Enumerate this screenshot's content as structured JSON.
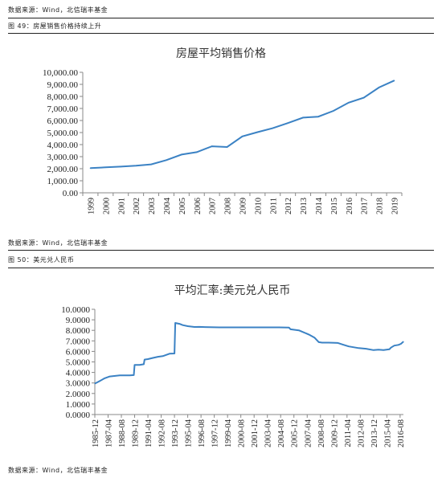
{
  "source_top": "数据来源：Wind，北信瑞丰基金",
  "fig49": "图 49：房屋销售价格持续上升",
  "source_mid": "数据来源：Wind，北信瑞丰基金",
  "fig50": "图 50：美元兑人民币",
  "source_bottom": "数据来源：Wind，北信瑞丰基金",
  "chart_data": [
    {
      "type": "line",
      "title": "房屋平均销售价格",
      "xlabel": "",
      "ylabel": "",
      "ylim": [
        0,
        10000
      ],
      "yticks": [
        "0.00",
        "1,000.00",
        "2,000.00",
        "3,000.00",
        "4,000.00",
        "5,000.00",
        "6,000.00",
        "7,000.00",
        "8,000.00",
        "9,000.00",
        "10,000.00"
      ],
      "categories": [
        "1999",
        "2000",
        "2001",
        "2002",
        "2003",
        "2004",
        "2005",
        "2006",
        "2007",
        "2008",
        "2009",
        "2010",
        "2011",
        "2012",
        "2013",
        "2014",
        "2015",
        "2016",
        "2017",
        "2018",
        "2019"
      ],
      "series": [
        {
          "values": [
            2050,
            2110,
            2170,
            2250,
            2360,
            2710,
            3170,
            3370,
            3860,
            3800,
            4680,
            5030,
            5360,
            5790,
            6240,
            6320,
            6800,
            7480,
            7890,
            8740,
            9310
          ]
        }
      ],
      "line_color": "#3b82c4",
      "grid": false
    },
    {
      "type": "line",
      "title": "平均汇率:美元兑人民币",
      "xlabel": "",
      "ylabel": "",
      "ylim": [
        0,
        10
      ],
      "yticks": [
        "0.0000",
        "1.0000",
        "2.0000",
        "3.0000",
        "4.0000",
        "5.0000",
        "6.0000",
        "7.0000",
        "8.0000",
        "9.0000",
        "10.0000"
      ],
      "xticks": [
        "1985-12",
        "1987-04",
        "1988-08",
        "1989-12",
        "1991-04",
        "1992-08",
        "1993-12",
        "1995-04",
        "1996-08",
        "1997-12",
        "1999-04",
        "2000-08",
        "2001-12",
        "2003-04",
        "2004-08",
        "2005-12",
        "2007-04",
        "2008-08",
        "2009-12",
        "2011-04",
        "2012-08",
        "2013-12",
        "2015-04",
        "2016-08"
      ],
      "xrange": [
        "1985-12",
        "2016-12"
      ],
      "series": [
        {
          "x": [
            "1985-12",
            "1986-06",
            "1986-12",
            "1987-06",
            "1988-06",
            "1989-06",
            "1989-11",
            "1989-12",
            "1990-06",
            "1990-11",
            "1990-12",
            "1991-04",
            "1991-10",
            "1992-04",
            "1992-10",
            "1993-04",
            "1993-06",
            "1993-12",
            "1994-01",
            "1994-06",
            "1994-10",
            "1995-04",
            "1995-12",
            "1996-06",
            "1997-06",
            "1998-06",
            "2000-06",
            "2002-06",
            "2004-06",
            "2005-06",
            "2005-08",
            "2006-06",
            "2007-06",
            "2008-01",
            "2008-06",
            "2008-10",
            "2009-06",
            "2010-05",
            "2010-11",
            "2011-06",
            "2012-06",
            "2013-03",
            "2013-12",
            "2014-06",
            "2014-12",
            "2015-07",
            "2015-09",
            "2016-01",
            "2016-06",
            "2016-09",
            "2016-12"
          ],
          "values": [
            2.94,
            3.19,
            3.45,
            3.62,
            3.72,
            3.72,
            3.75,
            4.72,
            4.72,
            4.78,
            5.22,
            5.27,
            5.38,
            5.49,
            5.55,
            5.72,
            5.78,
            5.8,
            8.7,
            8.62,
            8.5,
            8.4,
            8.32,
            8.33,
            8.3,
            8.28,
            8.28,
            8.28,
            8.28,
            8.27,
            8.1,
            8.0,
            7.6,
            7.3,
            6.88,
            6.83,
            6.83,
            6.8,
            6.65,
            6.47,
            6.31,
            6.25,
            6.12,
            6.16,
            6.13,
            6.2,
            6.36,
            6.55,
            6.62,
            6.72,
            6.92
          ]
        }
      ],
      "line_color": "#3b82c4",
      "grid": false
    }
  ]
}
